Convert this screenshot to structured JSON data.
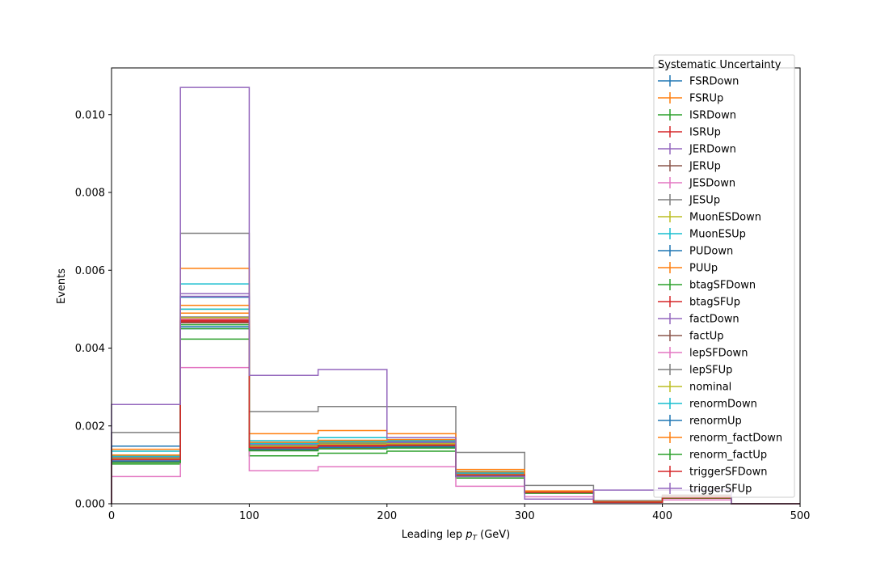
{
  "chart_data": {
    "type": "step-histogram",
    "xlabel_main": "Leading lep ",
    "xlabel_sym": "p",
    "xlabel_sub": "T",
    "xlabel_unit": " (GeV)",
    "ylabel": "Events",
    "xlim": [
      0,
      500
    ],
    "ylim": [
      0,
      0.0112
    ],
    "xticks": [
      0,
      100,
      200,
      300,
      400,
      500
    ],
    "xtick_labels": [
      "0",
      "100",
      "200",
      "300",
      "400",
      "500"
    ],
    "yticks": [
      0,
      0.002,
      0.004,
      0.006,
      0.008,
      0.01
    ],
    "ytick_labels": [
      "0.000",
      "0.002",
      "0.004",
      "0.006",
      "0.008",
      "0.010"
    ],
    "grid": false,
    "legend_title": "Systematic Uncertainty",
    "legend_position": "top-right",
    "bin_edges": [
      0,
      50,
      100,
      150,
      200,
      250,
      300,
      350,
      400,
      450,
      500
    ],
    "series": [
      {
        "name": "FSRDown",
        "color": "#1f77b4",
        "values": [
          0.00118,
          0.00531,
          0.00147,
          0.0015,
          0.0015,
          0.00075,
          0.0003,
          5e-05,
          0.00015,
          0.0
        ]
      },
      {
        "name": "FSRUp",
        "color": "#ff7f0e",
        "values": [
          0.00113,
          0.0049,
          0.00148,
          0.00155,
          0.00162,
          0.0008,
          0.00029,
          4e-05,
          0.00016,
          0.0
        ]
      },
      {
        "name": "ISRDown",
        "color": "#2ca02c",
        "values": [
          0.00102,
          0.00423,
          0.00123,
          0.0013,
          0.00135,
          0.00066,
          0.00027,
          4e-05,
          0.00014,
          0.0
        ]
      },
      {
        "name": "ISRUp",
        "color": "#d62728",
        "values": [
          0.00115,
          0.00468,
          0.00143,
          0.00147,
          0.00145,
          0.00073,
          0.00028,
          4e-05,
          0.00015,
          0.0
        ]
      },
      {
        "name": "JERDown",
        "color": "#9467bd",
        "values": [
          0.0012,
          0.00533,
          0.00152,
          0.00156,
          0.0016,
          0.00078,
          0.00031,
          5e-05,
          0.00016,
          0.0
        ]
      },
      {
        "name": "JERUp",
        "color": "#8c564b",
        "values": [
          0.00112,
          0.0047,
          0.00145,
          0.0015,
          0.00152,
          0.00074,
          0.00029,
          4e-05,
          0.0002,
          0.0
        ]
      },
      {
        "name": "JESDown",
        "color": "#e377c2",
        "values": [
          0.0007,
          0.0035,
          0.00085,
          0.00095,
          0.00095,
          0.00045,
          0.00018,
          3e-05,
          0.0001,
          0.0
        ]
      },
      {
        "name": "JESUp",
        "color": "#7f7f7f",
        "values": [
          0.00183,
          0.00695,
          0.00237,
          0.0025,
          0.0025,
          0.00132,
          0.00047,
          8e-05,
          0.00022,
          0.0
        ]
      },
      {
        "name": "MuonESDown",
        "color": "#bcbd22",
        "values": [
          0.00125,
          0.005,
          0.0015,
          0.00158,
          0.00155,
          0.00078,
          0.0003,
          5e-05,
          0.00016,
          0.0
        ]
      },
      {
        "name": "MuonESUp",
        "color": "#17becf",
        "values": [
          0.00135,
          0.00565,
          0.00162,
          0.0017,
          0.00165,
          0.00083,
          0.00032,
          5e-05,
          0.00017,
          0.0
        ]
      },
      {
        "name": "PUDown",
        "color": "#1f77b4",
        "values": [
          0.00148,
          0.0045,
          0.00155,
          0.0016,
          0.00158,
          0.0008,
          0.00031,
          5e-05,
          0.00016,
          0.0
        ]
      },
      {
        "name": "PUUp",
        "color": "#ff7f0e",
        "values": [
          0.0014,
          0.00605,
          0.0018,
          0.00188,
          0.0018,
          0.00088,
          0.00033,
          6e-05,
          0.00018,
          0.0
        ]
      },
      {
        "name": "btagSFDown",
        "color": "#2ca02c",
        "values": [
          0.0011,
          0.0046,
          0.0014,
          0.00145,
          0.00145,
          0.00072,
          0.00028,
          4e-05,
          0.00015,
          0.0
        ]
      },
      {
        "name": "btagSFUp",
        "color": "#d62728",
        "values": [
          0.00117,
          0.00472,
          0.00146,
          0.0015,
          0.00152,
          0.00075,
          0.00029,
          4e-05,
          0.00016,
          0.0
        ]
      },
      {
        "name": "factDown",
        "color": "#9467bd",
        "values": [
          0.0012,
          0.0054,
          0.0015,
          0.00155,
          0.00158,
          0.00078,
          0.0003,
          5e-05,
          0.00016,
          0.0
        ]
      },
      {
        "name": "factUp",
        "color": "#8c564b",
        "values": [
          0.00108,
          0.00465,
          0.00138,
          0.00143,
          0.00148,
          0.00072,
          0.00028,
          4e-05,
          0.00022,
          0.0
        ]
      },
      {
        "name": "lepSFDown",
        "color": "#e377c2",
        "values": [
          0.00113,
          0.00475,
          0.00145,
          0.0015,
          0.00152,
          0.00074,
          0.00029,
          4e-05,
          0.00015,
          0.0
        ]
      },
      {
        "name": "lepSFUp",
        "color": "#7f7f7f",
        "values": [
          0.00118,
          0.0048,
          0.0015,
          0.00155,
          0.00155,
          0.00076,
          0.0003,
          5e-05,
          0.00016,
          0.0
        ]
      },
      {
        "name": "nominal",
        "color": "#bcbd22",
        "values": [
          0.00116,
          0.00478,
          0.00148,
          0.00153,
          0.00154,
          0.00075,
          0.00029,
          4e-05,
          0.00016,
          0.0
        ]
      },
      {
        "name": "renormDown",
        "color": "#17becf",
        "values": [
          0.00122,
          0.005,
          0.00155,
          0.0016,
          0.00162,
          0.00079,
          0.00031,
          5e-05,
          0.00017,
          0.0
        ]
      },
      {
        "name": "renormUp",
        "color": "#1f77b4",
        "values": [
          0.0011,
          0.00455,
          0.0014,
          0.00145,
          0.00146,
          0.00071,
          0.00028,
          4e-05,
          0.00015,
          0.0
        ]
      },
      {
        "name": "renorm_factDown",
        "color": "#ff7f0e",
        "values": [
          0.00125,
          0.0051,
          0.00158,
          0.00163,
          0.00165,
          0.00082,
          0.00032,
          5e-05,
          0.00017,
          0.0
        ]
      },
      {
        "name": "renorm_factUp",
        "color": "#2ca02c",
        "values": [
          0.00106,
          0.0045,
          0.00136,
          0.00141,
          0.00143,
          0.0007,
          0.00027,
          4e-05,
          0.00015,
          0.0
        ]
      },
      {
        "name": "triggerSFDown",
        "color": "#d62728",
        "values": [
          0.00114,
          0.0047,
          0.00145,
          0.0015,
          0.00151,
          0.00074,
          0.00029,
          4e-05,
          0.00015,
          0.0
        ]
      },
      {
        "name": "triggerSFUp",
        "color": "#9467bd",
        "values": [
          0.00255,
          0.0107,
          0.0033,
          0.00345,
          0.0017,
          0.0007,
          0.00012,
          0.00035,
          0.00035,
          0.0
        ]
      }
    ]
  }
}
